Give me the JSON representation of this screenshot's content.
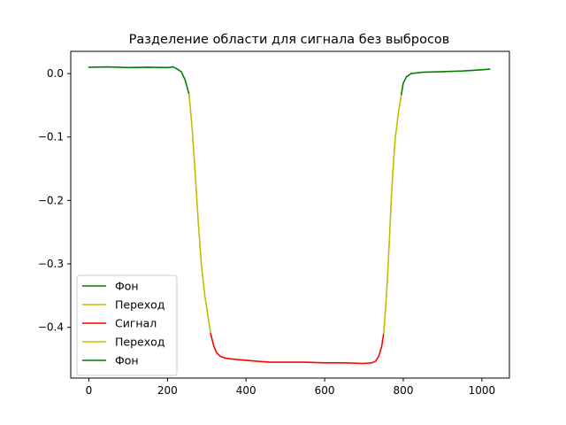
{
  "chart_data": {
    "type": "line",
    "title": "Разделение области для сигнала без выбросов",
    "xlabel": "",
    "ylabel": "",
    "xlim": [
      -46,
      1070
    ],
    "ylim": [
      -0.48,
      0.035
    ],
    "x_ticks": [
      0,
      200,
      400,
      600,
      800,
      1000
    ],
    "x_tick_labels": [
      "0",
      "200",
      "400",
      "600",
      "800",
      "1000"
    ],
    "y_ticks": [
      0.0,
      -0.1,
      -0.2,
      -0.3,
      -0.4
    ],
    "y_tick_labels": [
      "0.0",
      "−0.1",
      "−0.2",
      "−0.3",
      "−0.4"
    ],
    "grid": false,
    "legend_position": "lower-left",
    "series": [
      {
        "name": "Фон",
        "color": "#008000",
        "points": [
          [
            0,
            0.01
          ],
          [
            50,
            0.0105
          ],
          [
            100,
            0.0095
          ],
          [
            150,
            0.01
          ],
          [
            200,
            0.0095
          ],
          [
            215,
            0.0105
          ],
          [
            225,
            0.007
          ],
          [
            235,
            0.003
          ],
          [
            245,
            -0.01
          ],
          [
            255,
            -0.033
          ]
        ]
      },
      {
        "name": "Переход",
        "color": "#bfbf00",
        "points": [
          [
            255,
            -0.033
          ],
          [
            262,
            -0.08
          ],
          [
            270,
            -0.15
          ],
          [
            278,
            -0.23
          ],
          [
            286,
            -0.3
          ],
          [
            295,
            -0.35
          ],
          [
            305,
            -0.39
          ],
          [
            310,
            -0.41
          ]
        ]
      },
      {
        "name": "Сигнал",
        "color": "#ff0000",
        "points": [
          [
            310,
            -0.41
          ],
          [
            318,
            -0.43
          ],
          [
            325,
            -0.44
          ],
          [
            335,
            -0.446
          ],
          [
            350,
            -0.449
          ],
          [
            380,
            -0.451
          ],
          [
            420,
            -0.453
          ],
          [
            460,
            -0.455
          ],
          [
            500,
            -0.455
          ],
          [
            550,
            -0.455
          ],
          [
            600,
            -0.456
          ],
          [
            650,
            -0.456
          ],
          [
            700,
            -0.457
          ],
          [
            720,
            -0.456
          ],
          [
            730,
            -0.453
          ],
          [
            738,
            -0.445
          ],
          [
            745,
            -0.43
          ],
          [
            750,
            -0.41
          ]
        ]
      },
      {
        "name": "Переход",
        "color": "#bfbf00",
        "points": [
          [
            750,
            -0.41
          ],
          [
            755,
            -0.37
          ],
          [
            760,
            -0.32
          ],
          [
            765,
            -0.26
          ],
          [
            770,
            -0.19
          ],
          [
            775,
            -0.14
          ],
          [
            780,
            -0.1
          ],
          [
            788,
            -0.06
          ],
          [
            795,
            -0.033
          ]
        ]
      },
      {
        "name": "Фон",
        "color": "#008000",
        "points": [
          [
            795,
            -0.033
          ],
          [
            800,
            -0.015
          ],
          [
            808,
            -0.005
          ],
          [
            820,
            0.0
          ],
          [
            850,
            0.002
          ],
          [
            900,
            0.003
          ],
          [
            950,
            0.004
          ],
          [
            1000,
            0.006
          ],
          [
            1020,
            0.007
          ]
        ]
      }
    ]
  }
}
